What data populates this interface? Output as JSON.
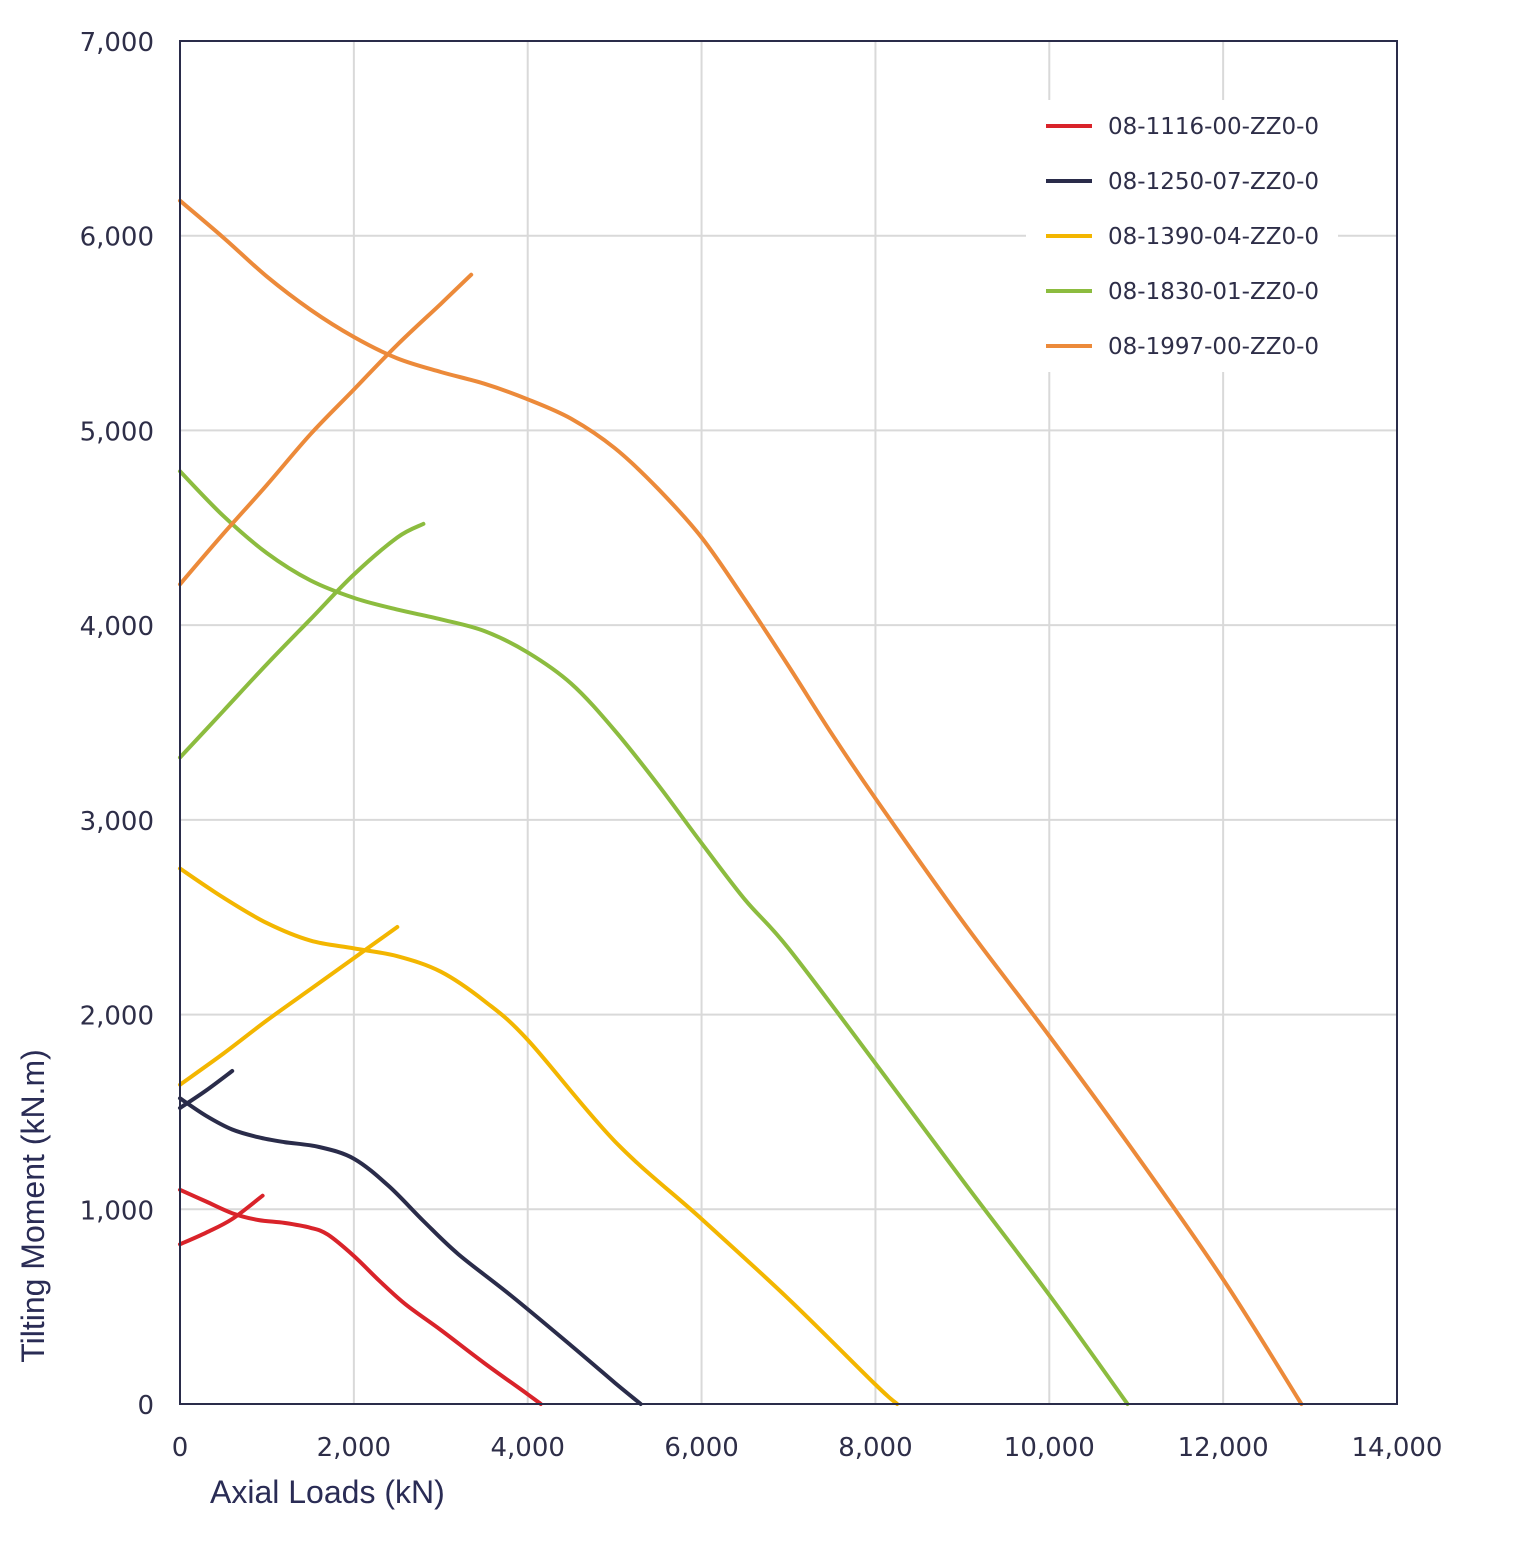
{
  "chart_data": {
    "type": "line",
    "xlabel": "Axial Loads (kN)",
    "ylabel": "Tilting Moment (kN.m)",
    "xlim": [
      0,
      14000
    ],
    "ylim": [
      0,
      7000
    ],
    "x_ticks": [
      0,
      2000,
      4000,
      6000,
      8000,
      10000,
      12000,
      14000
    ],
    "y_ticks": [
      0,
      1000,
      2000,
      3000,
      4000,
      5000,
      6000,
      7000
    ],
    "x_tick_labels": [
      "0",
      "2,000",
      "4,000",
      "6,000",
      "8,000",
      "10,000",
      "12,000",
      "14,000"
    ],
    "y_tick_labels": [
      "0",
      "1,000",
      "2,000",
      "3,000",
      "4,000",
      "5,000",
      "6,000",
      "7,000"
    ],
    "grid": true,
    "legend_position": "top-right",
    "series": [
      {
        "name": "08-1116-00-ZZ0-0",
        "color": "#d9232a",
        "curves": [
          [
            [
              0,
              1100
            ],
            [
              300,
              1040
            ],
            [
              600,
              980
            ],
            [
              900,
              945
            ],
            [
              1200,
              930
            ],
            [
              1500,
              905
            ],
            [
              1700,
              870
            ],
            [
              2000,
              760
            ],
            [
              2300,
              630
            ],
            [
              2600,
              510
            ],
            [
              3000,
              380
            ],
            [
              3500,
              210
            ],
            [
              4000,
              50
            ],
            [
              4150,
              0
            ]
          ],
          [
            [
              0,
              820
            ],
            [
              300,
              880
            ],
            [
              600,
              950
            ],
            [
              950,
              1070
            ]
          ]
        ]
      },
      {
        "name": "08-1250-07-ZZ0-0",
        "color": "#2a2c4a",
        "curves": [
          [
            [
              0,
              1570
            ],
            [
              300,
              1480
            ],
            [
              600,
              1410
            ],
            [
              900,
              1370
            ],
            [
              1200,
              1345
            ],
            [
              1600,
              1320
            ],
            [
              2000,
              1260
            ],
            [
              2400,
              1120
            ],
            [
              2800,
              940
            ],
            [
              3200,
              770
            ],
            [
              3800,
              560
            ],
            [
              4500,
              300
            ],
            [
              5000,
              110
            ],
            [
              5300,
              0
            ]
          ],
          [
            [
              0,
              1520
            ],
            [
              300,
              1610
            ],
            [
              600,
              1710
            ]
          ]
        ]
      },
      {
        "name": "08-1390-04-ZZ0-0",
        "color": "#f3b600",
        "curves": [
          [
            [
              0,
              2750
            ],
            [
              500,
              2600
            ],
            [
              1000,
              2470
            ],
            [
              1500,
              2380
            ],
            [
              2000,
              2340
            ],
            [
              2500,
              2300
            ],
            [
              3000,
              2220
            ],
            [
              3500,
              2070
            ],
            [
              4000,
              1870
            ],
            [
              5000,
              1350
            ],
            [
              6000,
              950
            ],
            [
              7000,
              540
            ],
            [
              8000,
              100
            ],
            [
              8250,
              0
            ]
          ],
          [
            [
              0,
              1640
            ],
            [
              500,
              1800
            ],
            [
              1000,
              1970
            ],
            [
              1500,
              2130
            ],
            [
              2000,
              2290
            ],
            [
              2500,
              2450
            ]
          ]
        ]
      },
      {
        "name": "08-1830-01-ZZ0-0",
        "color": "#8cbc3f",
        "curves": [
          [
            [
              0,
              4790
            ],
            [
              500,
              4560
            ],
            [
              1000,
              4370
            ],
            [
              1500,
              4230
            ],
            [
              2000,
              4140
            ],
            [
              2500,
              4080
            ],
            [
              3000,
              4030
            ],
            [
              3500,
              3970
            ],
            [
              4000,
              3860
            ],
            [
              4500,
              3700
            ],
            [
              5000,
              3460
            ],
            [
              5500,
              3180
            ],
            [
              6000,
              2880
            ],
            [
              6500,
              2590
            ],
            [
              7000,
              2340
            ],
            [
              8000,
              1750
            ],
            [
              9000,
              1150
            ],
            [
              10000,
              560
            ],
            [
              10900,
              0
            ]
          ],
          [
            [
              0,
              3320
            ],
            [
              500,
              3560
            ],
            [
              1000,
              3800
            ],
            [
              1500,
              4030
            ],
            [
              2000,
              4260
            ],
            [
              2500,
              4450
            ],
            [
              2800,
              4520
            ]
          ]
        ]
      },
      {
        "name": "08-1997-00-ZZ0-0",
        "color": "#ec8a3a",
        "curves": [
          [
            [
              0,
              6180
            ],
            [
              500,
              5990
            ],
            [
              1000,
              5790
            ],
            [
              1500,
              5620
            ],
            [
              2000,
              5480
            ],
            [
              2500,
              5370
            ],
            [
              3000,
              5300
            ],
            [
              3500,
              5240
            ],
            [
              4000,
              5160
            ],
            [
              4500,
              5060
            ],
            [
              5000,
              4910
            ],
            [
              5500,
              4700
            ],
            [
              6000,
              4450
            ],
            [
              6500,
              4130
            ],
            [
              7000,
              3790
            ],
            [
              7500,
              3440
            ],
            [
              8000,
              3110
            ],
            [
              9000,
              2480
            ],
            [
              10000,
              1890
            ],
            [
              11000,
              1280
            ],
            [
              12000,
              640
            ],
            [
              12900,
              0
            ]
          ],
          [
            [
              0,
              4210
            ],
            [
              500,
              4470
            ],
            [
              1000,
              4720
            ],
            [
              1500,
              4980
            ],
            [
              2000,
              5210
            ],
            [
              2500,
              5440
            ],
            [
              3000,
              5650
            ],
            [
              3350,
              5800
            ]
          ]
        ]
      }
    ]
  }
}
